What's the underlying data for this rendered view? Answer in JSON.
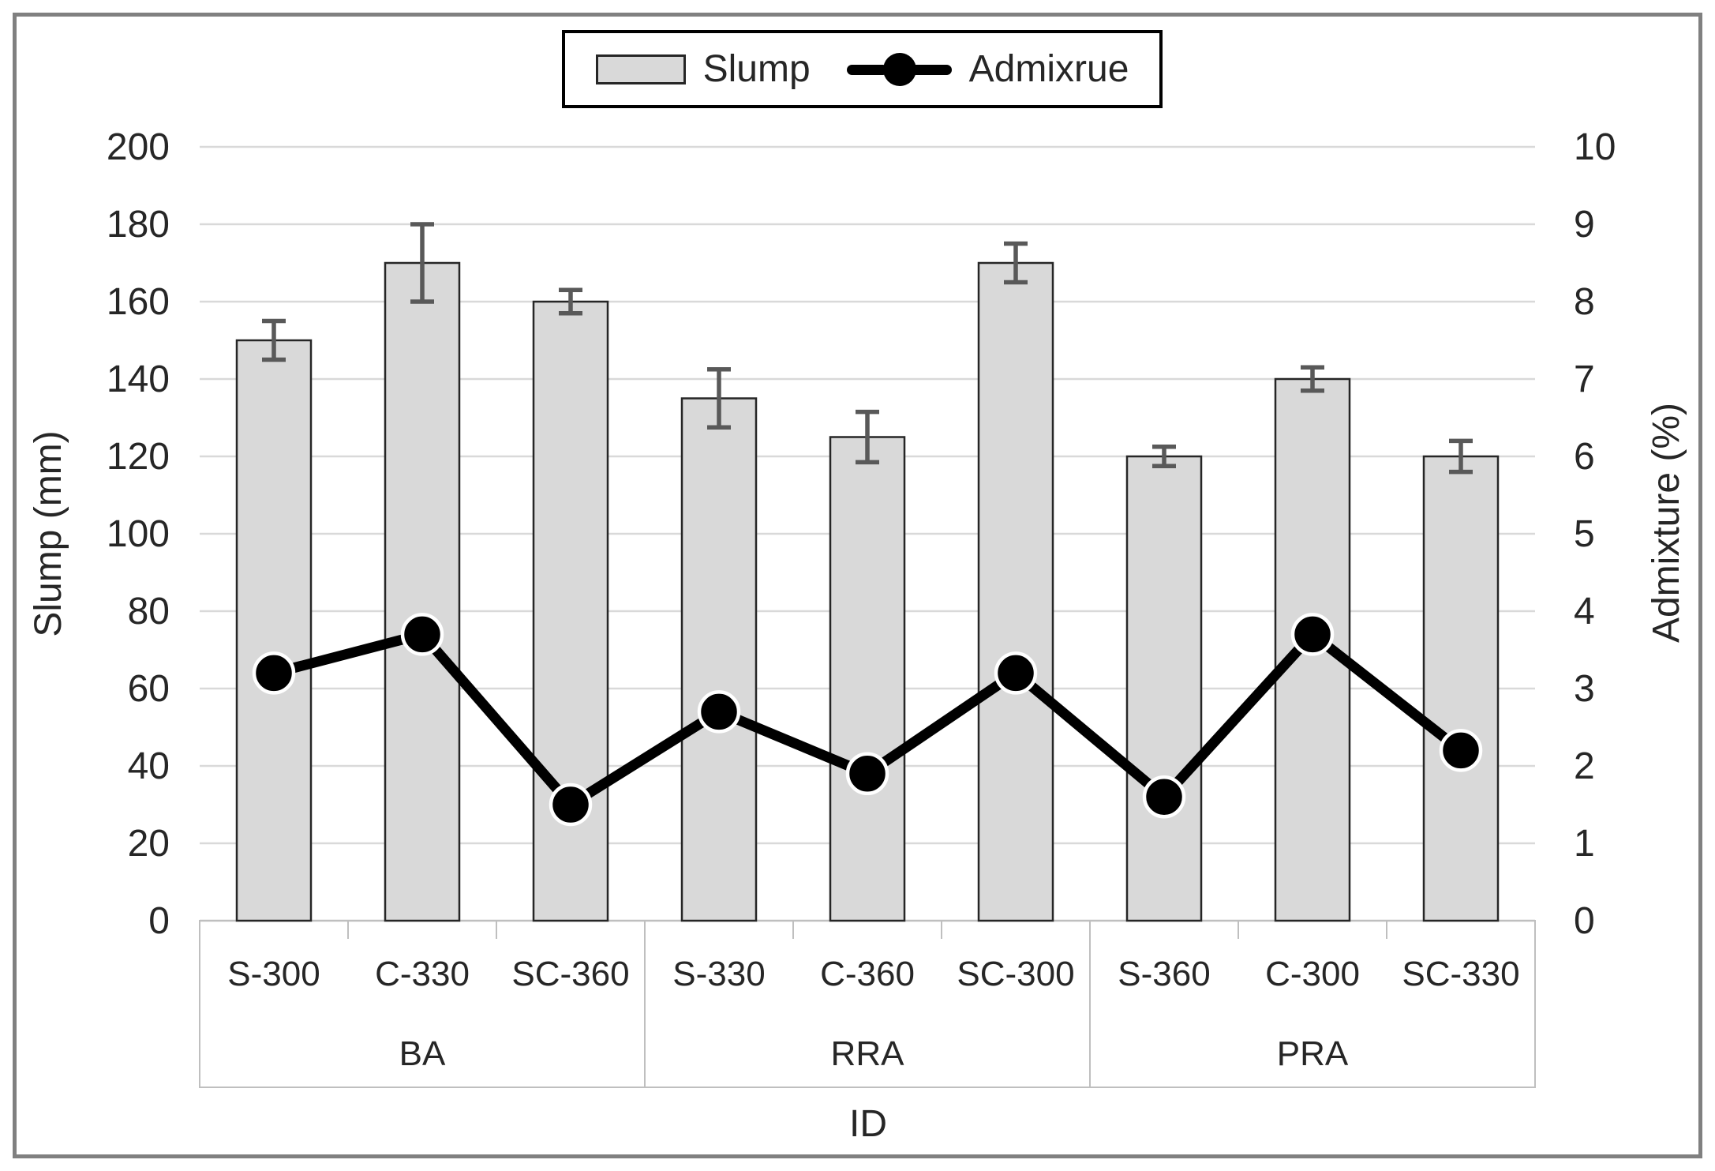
{
  "legend": {
    "slump_label": "Slump",
    "admixture_label": "Admixrue"
  },
  "axes": {
    "left_title": "Slump (mm)",
    "right_title": "Admixture (%)",
    "x_title": "ID",
    "left_ticks": [
      0,
      20,
      40,
      60,
      80,
      100,
      120,
      140,
      160,
      180,
      200
    ],
    "right_ticks": [
      0,
      1,
      2,
      3,
      4,
      5,
      6,
      7,
      8,
      9,
      10
    ]
  },
  "chart_data": {
    "type": "combo",
    "title": "",
    "xlabel": "ID",
    "ylabel_left": "Slump (mm)",
    "ylabel_right": "Admixture (%)",
    "ylim_left": [
      0,
      200
    ],
    "ylim_right": [
      0,
      10
    ],
    "grid": true,
    "legend_position": "top",
    "categories": [
      "S-300",
      "C-330",
      "SC-360",
      "S-330",
      "C-360",
      "SC-300",
      "S-360",
      "C-300",
      "SC-330"
    ],
    "groups": [
      {
        "label": "BA",
        "span": 3
      },
      {
        "label": "RRA",
        "span": 3
      },
      {
        "label": "PRA",
        "span": 3
      }
    ],
    "series": [
      {
        "name": "Slump",
        "type": "bar",
        "axis": "left",
        "values": [
          150,
          170,
          160,
          135,
          125,
          170,
          120,
          140,
          120
        ],
        "error": [
          5,
          10,
          3,
          7.5,
          6.5,
          5,
          2.5,
          3,
          4
        ]
      },
      {
        "name": "Admixrue",
        "type": "line",
        "axis": "right",
        "values": [
          3.2,
          3.7,
          1.5,
          2.7,
          1.9,
          3.2,
          1.6,
          3.7,
          2.2
        ]
      }
    ]
  },
  "colors": {
    "bar_fill": "#D9D9D9",
    "bar_border": "#262626",
    "error_bar": "#595959",
    "line": "#000000",
    "marker": "#000000",
    "marker_outline": "#FFFFFF",
    "gridline": "#D9D9D9",
    "axis_line": "#BFBFBF",
    "text": "#262626",
    "figure_border": "#808080",
    "legend_border": "#000000"
  }
}
